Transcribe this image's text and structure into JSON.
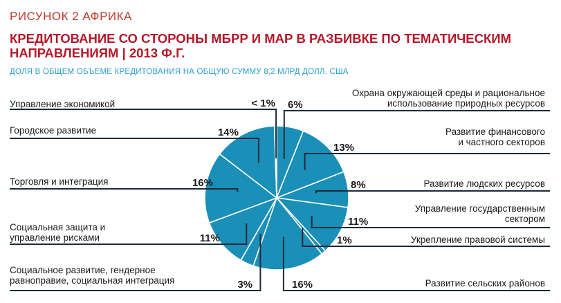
{
  "header": {
    "figure_label": "РИСУНОК 2  АФРИКА",
    "title": "КРЕДИТОВАНИЕ СО СТОРОНЫ МБРР И МАР В РАЗБИВКЕ ПО ТЕМАТИЧЕСКИМ НАПРАВЛЕНИЯМ | 2013 Ф.Г.",
    "subtitle": "ДОЛЯ В ОБЩЕМ ОБЪЕМЕ КРЕДИТОВАНИЯ НА ОБЩУЮ СУММУ 8,2 МЛРД ДОЛЛ. США"
  },
  "colors": {
    "slice": "#1a8fb8",
    "slice_border": "#ffffff",
    "leader": "#1b2a3a",
    "title": "#b5182a",
    "subtitle": "#2a9fd0"
  },
  "chart_data": {
    "type": "pie",
    "slices": [
      {
        "label": [
          "Охрана окружающей среды и рациональное",
          "использование природных ресурсов"
        ],
        "value_label": "6%",
        "value": 6
      },
      {
        "label": [
          "Развитие финансового",
          "и частного секторов"
        ],
        "value_label": "13%",
        "value": 13
      },
      {
        "label": [
          "Развитие людских ресурсов"
        ],
        "value_label": "8%",
        "value": 8
      },
      {
        "label": [
          "Управление государственным",
          "сектором"
        ],
        "value_label": "11%",
        "value": 11
      },
      {
        "label": [
          "Укрепление правовой системы"
        ],
        "value_label": "1%",
        "value": 1
      },
      {
        "label": [
          "Развитие сельских районов"
        ],
        "value_label": "16%",
        "value": 16
      },
      {
        "label": [
          "Социальное развитие, гендерное",
          "равноправие, социальная интеграция"
        ],
        "value_label": "3%",
        "value": 3
      },
      {
        "label": [
          "Социальная защита и",
          "управление рисками"
        ],
        "value_label": "11%",
        "value": 11
      },
      {
        "label": [
          "Торговля и интеграция"
        ],
        "value_label": "16%",
        "value": 16
      },
      {
        "label": [
          "Городское развитие"
        ],
        "value_label": "14%",
        "value": 14
      },
      {
        "label": [
          "Управление экономикой"
        ],
        "value_label": "< 1%",
        "value": 0.5
      }
    ]
  }
}
